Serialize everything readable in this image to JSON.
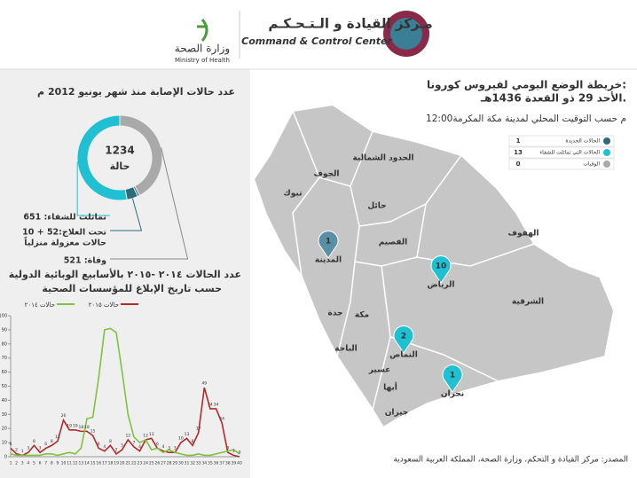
{
  "header": {
    "center_ar": "مـركز القيادة و الـتـحـكـم",
    "center_en": "Command & Control Center",
    "ministry_ar": "وزارة الصحة",
    "ministry_en": "Ministry of Health"
  },
  "chart_data": [
    {
      "type": "pie",
      "title": "عدد حالات الإصابة منذ شهر يونيو 2012 م",
      "total": 1234,
      "total_label": "حالة",
      "categories": [
        "تماثلت للشفاء: 651",
        "تحت العلاج:52 + 10",
        "حالات معزولة منزلياً",
        "وفاة: 521"
      ],
      "values": [
        651,
        52,
        10,
        521
      ],
      "colors": [
        "#1ec0d2",
        "#2b6c7a",
        "#2b6c7a",
        "#a9a9a9"
      ]
    },
    {
      "type": "line",
      "title": [
        "عدد الحالات ٢٠١٤ -٢٠١٥ بالأسابيع الوبائية الدولية",
        "حسب تاريخ الإبلاغ للمؤسسات الصحية"
      ],
      "x": [
        1,
        2,
        3,
        4,
        5,
        6,
        7,
        8,
        9,
        10,
        11,
        12,
        13,
        14,
        15,
        16,
        17,
        18,
        19,
        20,
        21,
        22,
        23,
        24,
        25,
        26,
        27,
        28,
        29,
        30,
        31,
        32,
        33,
        34,
        35,
        36,
        37,
        38,
        39,
        40
      ],
      "xticks": [
        1,
        2,
        3,
        4,
        5,
        6,
        7,
        8,
        9,
        10,
        11,
        12,
        13,
        14,
        15,
        16,
        17,
        18,
        19,
        20,
        21,
        22,
        23,
        24,
        25,
        26,
        27,
        28,
        29,
        30,
        31,
        32,
        33,
        34,
        35,
        36,
        37,
        38,
        39,
        40
      ],
      "xlim": [
        1,
        40
      ],
      "ylim": [
        0,
        100
      ],
      "yticks": [
        0,
        10,
        20,
        30,
        40,
        50,
        60,
        70,
        80,
        90,
        100
      ],
      "series": [
        {
          "name": "حالات ٢٠١٥",
          "color": "#b22a2a",
          "values": [
            6,
            2,
            1,
            3,
            8,
            3,
            6,
            8,
            11,
            26,
            19,
            19,
            18,
            18,
            15,
            6,
            4,
            8,
            2,
            5,
            12,
            7,
            4,
            12,
            13,
            6,
            4,
            3,
            3,
            10,
            13,
            8,
            17,
            49,
            34,
            34,
            24,
            3,
            1,
            0
          ]
        },
        {
          "name": "حالات ٢٠١٤",
          "color": "#7fc241",
          "values": [
            2,
            1,
            1,
            1,
            1,
            1,
            2,
            2,
            1,
            2,
            3,
            2,
            6,
            27,
            28,
            56,
            90,
            91,
            88,
            60,
            30,
            14,
            10,
            12,
            5,
            6,
            3,
            5,
            3,
            2,
            1,
            1,
            2,
            1,
            1,
            2,
            3,
            4,
            5,
            2
          ]
        }
      ]
    }
  ],
  "map": {
    "title": "خريطة الوضع اليومي لفيروس كورونا:",
    "date": "الأحد  29 ذو القعدة 1436هـ.",
    "time": "12:00م حسب التوقيت المحلي لمدينة مكة المكرمة",
    "legend": [
      {
        "label": "الحالات الجديدة",
        "value": 1,
        "color": "#2b6c7a"
      },
      {
        "label": "الحالات التي تماثلت للشفاء",
        "value": 13,
        "color": "#1ec0d2"
      },
      {
        "label": "الوفيات",
        "value": 0,
        "color": "#a9a9a9"
      }
    ],
    "regions": [
      "الجوف",
      "الحدود الشمالية",
      "تبوك",
      "حائل",
      "القصيم",
      "الهفوف",
      "الشرقية",
      "جدة",
      "مكة",
      "الباحة",
      "عسير",
      "أبها",
      "جيزان"
    ],
    "markers": [
      {
        "name": "المدينة",
        "value": 1,
        "color": "#5a8fa8"
      },
      {
        "name": "الرياض",
        "value": 10,
        "color": "#1ec0d2"
      },
      {
        "name": "النماص",
        "value": 2,
        "color": "#1ec0d2"
      },
      {
        "name": "نجران",
        "value": 1,
        "color": "#1ec0d2"
      }
    ],
    "source": "المصدر: مركز القيادة و التحكم، وزارة الصحة، المملكة العربية السعودية"
  }
}
